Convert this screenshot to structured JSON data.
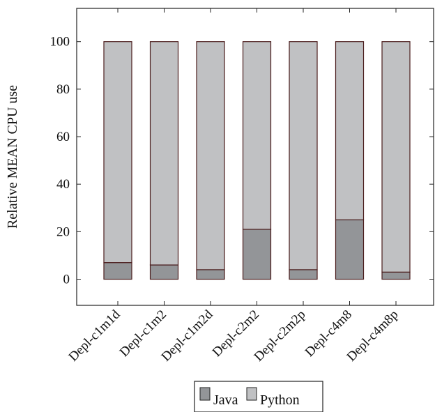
{
  "chart_data": {
    "type": "bar",
    "stacked": true,
    "title": "",
    "xlabel": "",
    "ylabel": "Relative MEAN CPU use",
    "categories": [
      "Depl-c1m1d",
      "Depl-c1m2",
      "Depl-c1m2d",
      "Depl-c2m2",
      "Depl-c2m2p",
      "Depl-c4m8",
      "Depl-c4m8p"
    ],
    "series": [
      {
        "name": "Java",
        "color": "#939598",
        "values": [
          7,
          6,
          4,
          21,
          4,
          25,
          3
        ]
      },
      {
        "name": "Python",
        "color": "#c0c1c3",
        "values": [
          93,
          94,
          96,
          79,
          96,
          75,
          97
        ]
      }
    ],
    "ylim": [
      -11,
      114
    ],
    "yticks": [
      0,
      20,
      40,
      60,
      80,
      100
    ],
    "grid": false,
    "legend_position": "bottom",
    "bar_edge_color": "#4a1c1c"
  }
}
